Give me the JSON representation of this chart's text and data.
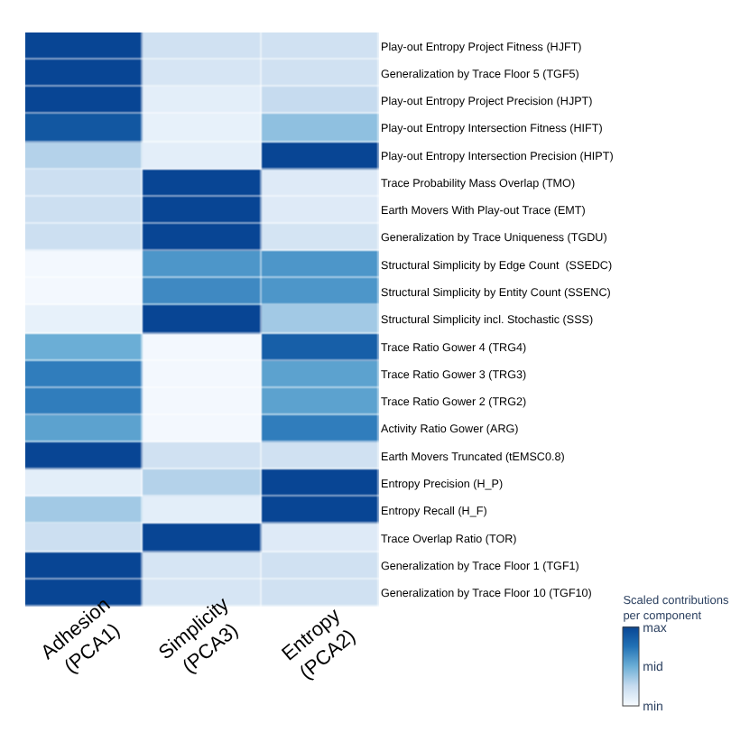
{
  "chart_data": {
    "type": "heatmap",
    "categories": [
      "Adhesion\n(PCA1)",
      "Simplicity\n(PCA3)",
      "Entropy\n(PCA2)"
    ],
    "y_categories": [
      "Play-out Entropy Project Fitness (HJFT)",
      "Generalization by Trace Floor 5 (TGF5)",
      "Play-out Entropy Project Precision (HJPT)",
      "Play-out Entropy Intersection Fitness (HIFT)",
      "Play-out Entropy Intersection Precision (HIPT)",
      "Trace Probability Mass Overlap (TMO)",
      "Earth Movers With Play-out Trace (EMT)",
      "Generalization by Trace Uniqueness (TGDU)",
      "Structural Simplicity by Edge Count  (SSEDC)",
      "Structural Simplicity by Entity Count (SSENC)",
      "Structural Simplicity incl. Stochastic (SSS)",
      "Trace Ratio Gower 4 (TRG4)",
      "Trace Ratio Gower 3 (TRG3)",
      "Trace Ratio Gower 2 (TRG2)",
      "Activity Ratio Gower (ARG)",
      "Earth Movers Truncated (tEMSC0.8)",
      "Entropy Precision (H_P)",
      "Entropy Recall (H_F)",
      "Trace Overlap Ratio (TOR)",
      "Generalization by Trace Floor 1 (TGF1)",
      "Generalization by Trace Floor 10 (TGF10)"
    ],
    "cells": [
      [
        1,
        0.2,
        0.2
      ],
      [
        1,
        0.17,
        0.2
      ],
      [
        1,
        0.1,
        0.25
      ],
      [
        0.9,
        0.08,
        0.4
      ],
      [
        0.3,
        0.1,
        1
      ],
      [
        0.22,
        1,
        0.13
      ],
      [
        0.22,
        1,
        0.13
      ],
      [
        0.22,
        1,
        0.18
      ],
      [
        0.02,
        0.6,
        0.6
      ],
      [
        0.02,
        0.65,
        0.6
      ],
      [
        0.08,
        1,
        0.35
      ],
      [
        0.5,
        0.02,
        0.85
      ],
      [
        0.7,
        0.02,
        0.55
      ],
      [
        0.7,
        0.02,
        0.55
      ],
      [
        0.55,
        0.02,
        0.7
      ],
      [
        1,
        0.2,
        0.2
      ],
      [
        0.1,
        0.3,
        1
      ],
      [
        0.35,
        0.1,
        1
      ],
      [
        0.22,
        1,
        0.13
      ],
      [
        1,
        0.17,
        0.2
      ],
      [
        1,
        0.17,
        0.2
      ]
    ],
    "clim": [
      0,
      1
    ],
    "cticks": [
      {
        "value": 0,
        "label": "min"
      },
      {
        "value": 0.5,
        "label": "mid"
      },
      {
        "value": 1,
        "label": "max"
      }
    ],
    "clabel": "Scaled contributions\nper component"
  }
}
